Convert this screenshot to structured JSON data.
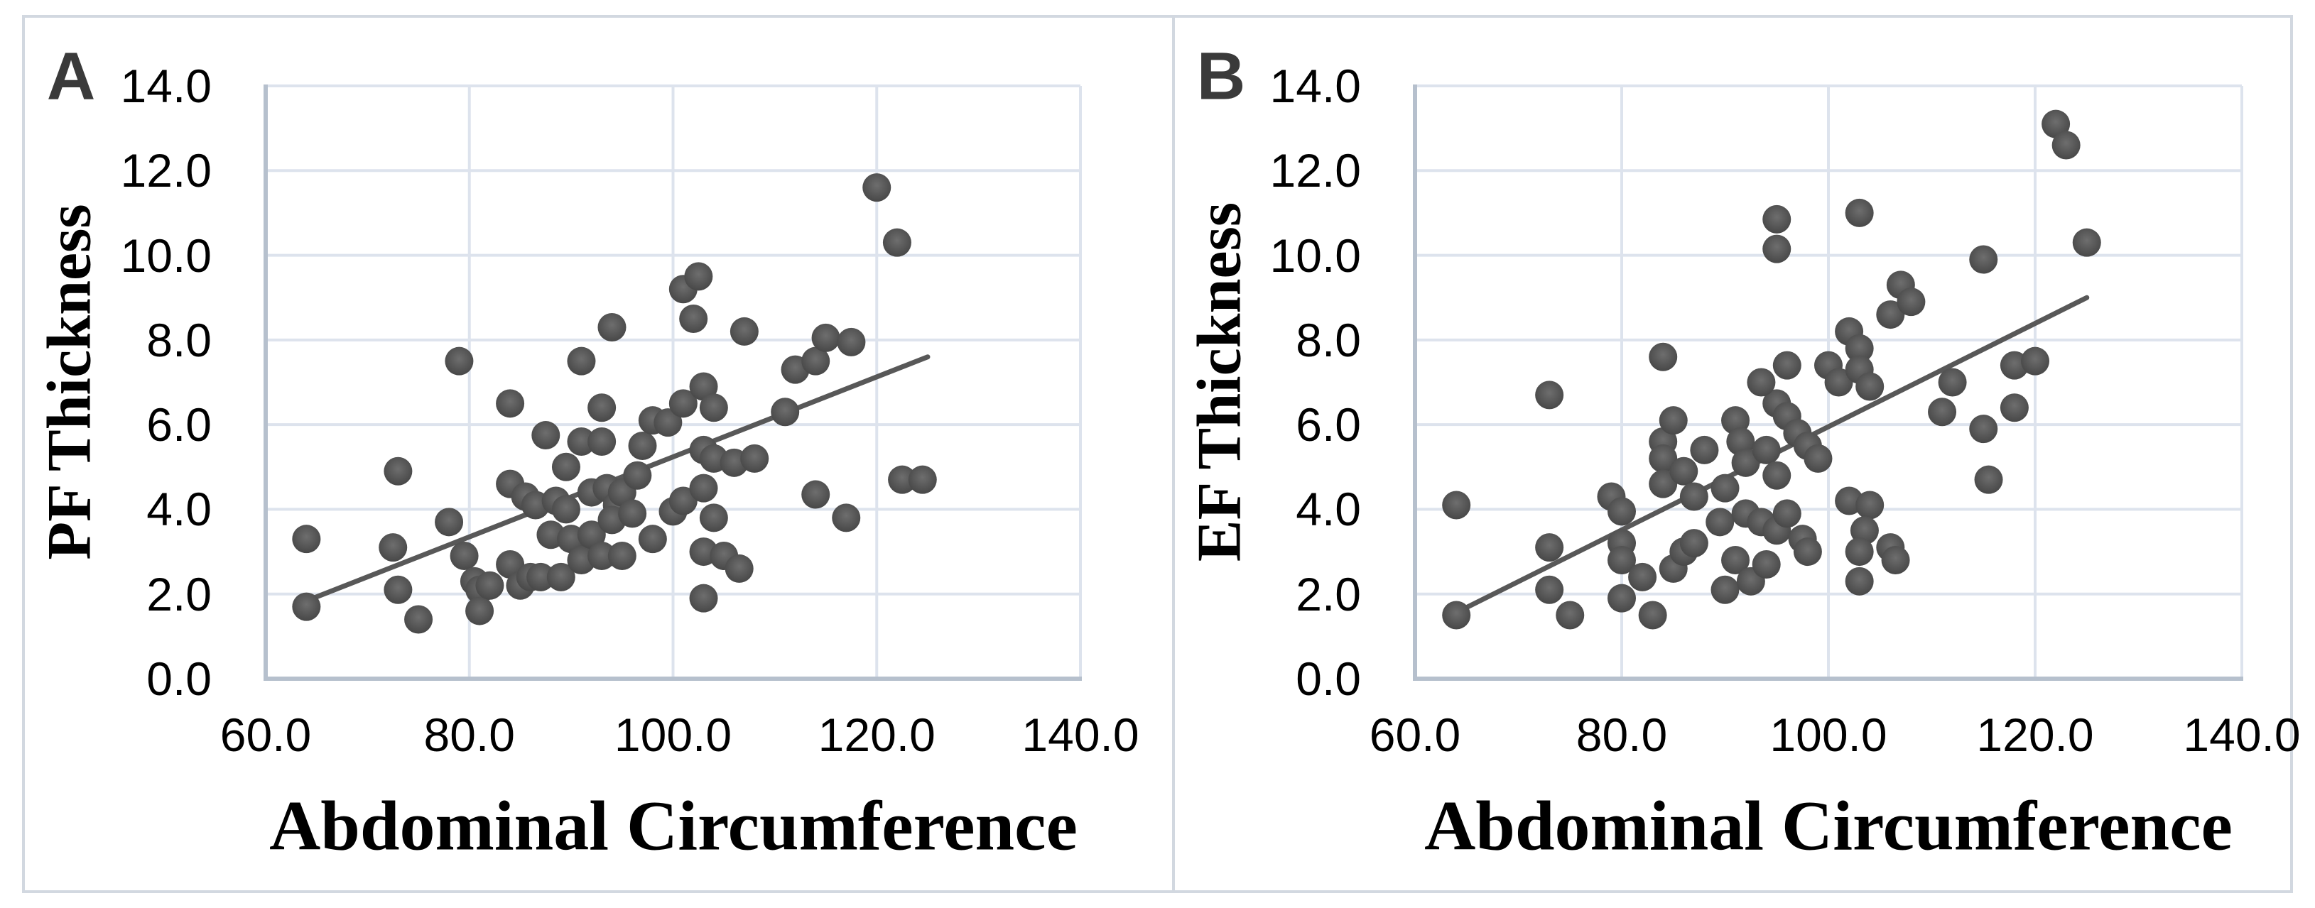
{
  "figure": {
    "background": "#ffffff",
    "border_color": "#d2d8e0",
    "gridline_color": "#dde3ed",
    "axis_line_color": "#b6c0cd",
    "marker_color": "#565656",
    "trendline_color": "#585858",
    "text_color": "#000000",
    "panel_letter_color": "#3a3a3a"
  },
  "chart_data": [
    {
      "type": "scatter",
      "panel_label": "A",
      "xlabel": "Abdominal Circumference",
      "ylabel": "PF Thickness",
      "xlim": [
        60.0,
        140.0
      ],
      "ylim": [
        0.0,
        14.0
      ],
      "xticks": [
        "60.0",
        "80.0",
        "100.0",
        "120.0",
        "140.0"
      ],
      "yticks": [
        "0.0",
        "2.0",
        "4.0",
        "6.0",
        "8.0",
        "10.0",
        "12.0",
        "14.0"
      ],
      "grid": true,
      "legend": "none",
      "trendline": {
        "x1": 63.6,
        "y1": 1.8,
        "x2": 125.0,
        "y2": 7.6
      },
      "points": [
        [
          64,
          3.3
        ],
        [
          64,
          1.7
        ],
        [
          72.5,
          3.1
        ],
        [
          73,
          4.9
        ],
        [
          73,
          2.1
        ],
        [
          75,
          1.4
        ],
        [
          78,
          3.7
        ],
        [
          79,
          7.5
        ],
        [
          79.5,
          2.9
        ],
        [
          80.5,
          2.3
        ],
        [
          81,
          2.1
        ],
        [
          81,
          1.6
        ],
        [
          82,
          2.2
        ],
        [
          84,
          6.5
        ],
        [
          84,
          4.6
        ],
        [
          84,
          2.7
        ],
        [
          85,
          2.2
        ],
        [
          85.5,
          4.3
        ],
        [
          86.5,
          4.1
        ],
        [
          86,
          2.4
        ],
        [
          87.5,
          5.75
        ],
        [
          87,
          2.4
        ],
        [
          88.5,
          4.2
        ],
        [
          88,
          3.4
        ],
        [
          89.5,
          5.0
        ],
        [
          89.5,
          4.0
        ],
        [
          89,
          2.4
        ],
        [
          90,
          3.3
        ],
        [
          91,
          7.5
        ],
        [
          91,
          5.6
        ],
        [
          91,
          2.8
        ],
        [
          92,
          4.4
        ],
        [
          92,
          3.4
        ],
        [
          93,
          6.4
        ],
        [
          93,
          5.6
        ],
        [
          93.5,
          4.5
        ],
        [
          93,
          2.9
        ],
        [
          94,
          8.3
        ],
        [
          94.5,
          4.1
        ],
        [
          94,
          3.75
        ],
        [
          95,
          4.4
        ],
        [
          95,
          2.9
        ],
        [
          96,
          3.9
        ],
        [
          96.5,
          4.8
        ],
        [
          97,
          5.5
        ],
        [
          98,
          6.1
        ],
        [
          98,
          3.3
        ],
        [
          99.5,
          6.05
        ],
        [
          100,
          3.95
        ],
        [
          101,
          4.2
        ],
        [
          101,
          6.5
        ],
        [
          101,
          9.2
        ],
        [
          102.5,
          9.5
        ],
        [
          102,
          8.5
        ],
        [
          103,
          6.9
        ],
        [
          104,
          6.4
        ],
        [
          103,
          5.4
        ],
        [
          104,
          5.2
        ],
        [
          103,
          4.5
        ],
        [
          104,
          3.8
        ],
        [
          103,
          3.0
        ],
        [
          103,
          1.9
        ],
        [
          105,
          2.9
        ],
        [
          106.5,
          2.6
        ],
        [
          106,
          5.1
        ],
        [
          108,
          5.2
        ],
        [
          107,
          8.2
        ],
        [
          111,
          6.3
        ],
        [
          112,
          7.3
        ],
        [
          114,
          7.5
        ],
        [
          115,
          8.05
        ],
        [
          117.5,
          7.95
        ],
        [
          114,
          4.35
        ],
        [
          117,
          3.8
        ],
        [
          120,
          11.6
        ],
        [
          122,
          10.3
        ],
        [
          122.5,
          4.7
        ],
        [
          124.5,
          4.7
        ]
      ]
    },
    {
      "type": "scatter",
      "panel_label": "B",
      "xlabel": "Abdominal Circumference",
      "ylabel": "EF Thickness",
      "xlim": [
        60.0,
        140.0
      ],
      "ylim": [
        0.0,
        14.0
      ],
      "xticks": [
        "60.0",
        "80.0",
        "100.0",
        "120.0",
        "140.0"
      ],
      "yticks": [
        "0.0",
        "2.0",
        "4.0",
        "6.0",
        "8.0",
        "10.0",
        "12.0",
        "14.0"
      ],
      "grid": true,
      "legend": "none",
      "trendline": {
        "x1": 63.5,
        "y1": 1.5,
        "x2": 125.0,
        "y2": 9.0
      },
      "points": [
        [
          64,
          4.1
        ],
        [
          64,
          1.5
        ],
        [
          73,
          6.7
        ],
        [
          73,
          3.1
        ],
        [
          73,
          2.1
        ],
        [
          75,
          1.5
        ],
        [
          79,
          4.3
        ],
        [
          80,
          3.95
        ],
        [
          80,
          3.2
        ],
        [
          80,
          2.8
        ],
        [
          80,
          1.9
        ],
        [
          82,
          2.4
        ],
        [
          83,
          1.5
        ],
        [
          84,
          7.6
        ],
        [
          84,
          5.6
        ],
        [
          84,
          5.2
        ],
        [
          84,
          4.6
        ],
        [
          85,
          6.1
        ],
        [
          86,
          4.9
        ],
        [
          87,
          4.3
        ],
        [
          85,
          2.6
        ],
        [
          86,
          3.0
        ],
        [
          87,
          3.2
        ],
        [
          88,
          5.4
        ],
        [
          89.5,
          3.7
        ],
        [
          90,
          4.5
        ],
        [
          90,
          2.1
        ],
        [
          91,
          6.1
        ],
        [
          91.5,
          5.6
        ],
        [
          91,
          2.8
        ],
        [
          92,
          5.1
        ],
        [
          92.5,
          2.3
        ],
        [
          94,
          2.7
        ],
        [
          92,
          3.9
        ],
        [
          93.5,
          3.7
        ],
        [
          95,
          3.5
        ],
        [
          96,
          3.9
        ],
        [
          97.5,
          3.3
        ],
        [
          98,
          3.0
        ],
        [
          94,
          5.4
        ],
        [
          95,
          4.8
        ],
        [
          95,
          6.5
        ],
        [
          96,
          6.2
        ],
        [
          97,
          5.8
        ],
        [
          98,
          5.5
        ],
        [
          99,
          5.2
        ],
        [
          93.5,
          7.0
        ],
        [
          96,
          7.4
        ],
        [
          100,
          7.4
        ],
        [
          101,
          7.0
        ],
        [
          102,
          8.2
        ],
        [
          103,
          7.8
        ],
        [
          103,
          7.3
        ],
        [
          104,
          6.9
        ],
        [
          103,
          11.0
        ],
        [
          95,
          10.85
        ],
        [
          95,
          10.15
        ],
        [
          106,
          8.6
        ],
        [
          107,
          9.3
        ],
        [
          108,
          8.9
        ],
        [
          102,
          4.2
        ],
        [
          104,
          4.1
        ],
        [
          103.5,
          3.5
        ],
        [
          103,
          3.0
        ],
        [
          106,
          3.1
        ],
        [
          106.5,
          2.8
        ],
        [
          103,
          2.3
        ],
        [
          111,
          6.3
        ],
        [
          112,
          7.0
        ],
        [
          115,
          5.9
        ],
        [
          115.5,
          4.7
        ],
        [
          115,
          9.9
        ],
        [
          118,
          7.4
        ],
        [
          120,
          7.5
        ],
        [
          118,
          6.4
        ],
        [
          122,
          13.1
        ],
        [
          123,
          12.6
        ],
        [
          125,
          10.3
        ]
      ]
    }
  ]
}
